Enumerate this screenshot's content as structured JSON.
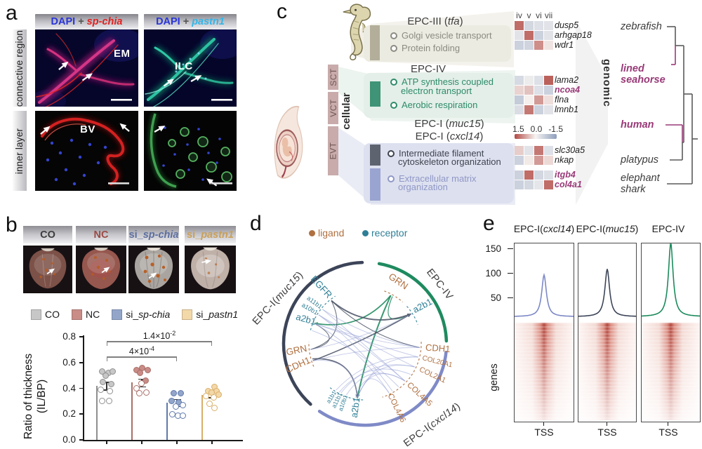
{
  "figure_labels": {
    "a": "a",
    "b": "b",
    "c": "c",
    "d": "d",
    "e": "e"
  },
  "panel_a": {
    "columns": [
      {
        "stain": "DAPI",
        "plus": "+",
        "gene": "sp-chia"
      },
      {
        "stain": "DAPI",
        "plus": "+",
        "gene": "pastn1"
      }
    ],
    "row_labels": [
      "connective region",
      "inner layer"
    ],
    "overlays": {
      "em": "EM",
      "ilc": "ILC",
      "bv": "BV"
    }
  },
  "panel_b": {
    "photo_headers": [
      {
        "prefix": "CO",
        "gene": "",
        "color": "#3d3d3d"
      },
      {
        "prefix": "NC",
        "gene": "",
        "color": "#9c4a44"
      },
      {
        "prefix": "si_",
        "gene": "sp-chia",
        "color": "#5d6f9f"
      },
      {
        "prefix": "si_",
        "gene": "pastn1",
        "color": "#c9a05a"
      }
    ],
    "legend": [
      {
        "prefix": "CO",
        "gene": "",
        "swatch": "#c7c7c7"
      },
      {
        "prefix": "NC",
        "gene": "",
        "swatch": "#c98c87"
      },
      {
        "prefix": "si_",
        "gene": "sp-chia",
        "swatch": "#93a6ca"
      },
      {
        "prefix": "si_",
        "gene": "pastn1",
        "swatch": "#f3d8a9"
      }
    ]
  },
  "panel_c": {
    "cell_axis": "cellular",
    "genome_axis": "genomic",
    "tropho": [
      "SCT",
      "VCT",
      "EVT"
    ],
    "hm_cols": [
      "iv",
      "v",
      "vi",
      "vii"
    ],
    "scale_labels": [
      "1.5",
      "0.0",
      "-1.5"
    ],
    "sections": [
      {
        "h_pre": "EPC-III (",
        "h_gene": "tfa",
        "h_post": ")",
        "block_color": "#b2ae99",
        "band_color": "#ecebe1",
        "terms": [
          {
            "l1": "Golgi vesicle transport",
            "l2": "",
            "color": "#8b8b82"
          },
          {
            "l1": "Protein folding",
            "l2": "",
            "color": "#8b8b82"
          }
        ]
      },
      {
        "h_pre": "EPC-IV",
        "h_gene": "",
        "h_post": "",
        "block_color": "#3f9377",
        "band_color": "#e3efe8",
        "terms": [
          {
            "l1": "ATP synthesis coupled",
            "l2": "electron transport",
            "color": "#2e8b6a"
          },
          {
            "l1": "Aerobic respiration",
            "l2": "",
            "color": "#2e8b6a"
          }
        ]
      },
      {
        "h_pre": "EPC-I (",
        "h_gene": "muc15",
        "h_post": ")",
        "h2_pre": "EPC-I (",
        "h2_gene": "cxcl14",
        "h2_post": ")",
        "block_color": "#5e6370",
        "block2_color": "#9aa4d1",
        "band_color": "#dde0ef",
        "terms": [
          {
            "l1": "Intermediate filament",
            "l2": "cytoskeleton organization",
            "color": "#3f4450"
          },
          {
            "l1": "Extracellular matrix",
            "l2": "organization",
            "color": "#8f98c6"
          }
        ]
      }
    ],
    "tree": {
      "highlight_color": "#993a78",
      "taxa": [
        {
          "line1": "zebrafish",
          "line2": "",
          "hl": false
        },
        {
          "line1": "lined",
          "line2": "seahorse",
          "hl": true
        },
        {
          "line1": "human",
          "line2": "",
          "hl": true
        },
        {
          "line1": "platypus",
          "line2": "",
          "hl": false
        },
        {
          "line1": "elephant",
          "line2": "shark",
          "hl": false
        }
      ]
    }
  },
  "panel_d": {
    "legend": [
      {
        "label": "ligand",
        "color": "#b07040"
      },
      {
        "label": "receptor",
        "color": "#2e7f96"
      }
    ],
    "node_colors": {
      "l": "#b07040",
      "r": "#2e7f96"
    },
    "chord_colors": {
      "gray": "#4e5668",
      "green": "#1f8a5f",
      "peri": "#9aa3d6"
    },
    "arcs": [
      {
        "pre": "EPC-I(",
        "gene": "muc15",
        "post": ")",
        "color": "#3c4458",
        "a0": 222,
        "a1": 358,
        "lx": -121,
        "ly": -62,
        "rot": -47
      },
      {
        "pre": "EPC-IV",
        "gene": "",
        "post": "",
        "color": "#1f8a5f",
        "a0": 10,
        "a1": 88,
        "lx": 103,
        "ly": -82,
        "rot": 52
      },
      {
        "pre": "EPC-I(",
        "gene": "cxcl14",
        "post": ")",
        "color": "#7f8ac7",
        "a0": 96,
        "a1": 214,
        "lx": 98,
        "ly": 119,
        "rot": -36
      }
    ],
    "nodes": [
      {
        "label": "EGFR",
        "ang": 322,
        "r": 102,
        "rot": 48,
        "c": "r",
        "fs": 13.5
      },
      {
        "label": "a11b1",
        "ang": 309,
        "r": 93,
        "rot": 36,
        "c": "r",
        "fs": 9
      },
      {
        "label": "a10b1",
        "ang": 302,
        "r": 93,
        "rot": 30,
        "c": "r",
        "fs": 9
      },
      {
        "label": "a2b1",
        "ang": 292,
        "r": 91,
        "rot": 16,
        "c": "r",
        "fs": 13
      },
      {
        "label": "GRN",
        "ang": 264,
        "r": 98,
        "rot": -12,
        "c": "l",
        "fs": 13.5
      },
      {
        "label": "CDH1",
        "ang": 252,
        "r": 100,
        "rot": -24,
        "c": "l",
        "fs": 13.5
      },
      {
        "label": "GRN",
        "ang": 28,
        "r": 100,
        "rot": 34,
        "c": "l",
        "fs": 13.5
      },
      {
        "label": "a2b1",
        "ang": 57,
        "r": 98,
        "rot": -28,
        "c": "r",
        "fs": 13
      },
      {
        "label": "CDH1",
        "ang": 94,
        "r": 104,
        "rot": 4,
        "c": "l",
        "fs": 13
      },
      {
        "label": "COL20A1",
        "ang": 104,
        "r": 106,
        "rot": 14,
        "c": "l",
        "fs": 10
      },
      {
        "label": "COL2A1",
        "ang": 115,
        "r": 106,
        "rot": 25,
        "c": "l",
        "fs": 10.5
      },
      {
        "label": "COL4A5",
        "ang": 133,
        "r": 106,
        "rot": 43,
        "c": "l",
        "fs": 11.5
      },
      {
        "label": "COL4A6",
        "ang": 154,
        "r": 102,
        "rot": 64,
        "c": "l",
        "fs": 11.5
      },
      {
        "label": "a2b1",
        "ang": 188,
        "r": 92,
        "rot": -82,
        "c": "r",
        "fs": 13
      },
      {
        "label": "a10b1",
        "ang": 200,
        "r": 90,
        "rot": -70,
        "c": "r",
        "fs": 8.5
      },
      {
        "label": "a11b1",
        "ang": 206,
        "r": 90,
        "rot": -64,
        "c": "r",
        "fs": 8.5
      },
      {
        "label": "a1b1",
        "ang": 212,
        "r": 90,
        "rot": -58,
        "c": "r",
        "fs": 8.5
      }
    ],
    "inner_arcs": [
      {
        "a0": 284,
        "a1": 328,
        "c": "r"
      },
      {
        "a0": 246,
        "a1": 272,
        "c": "l"
      },
      {
        "a0": 182,
        "a1": 220,
        "c": "r"
      },
      {
        "a0": 88,
        "a1": 162,
        "c": "l"
      },
      {
        "a0": 20,
        "a1": 42,
        "c": "l"
      },
      {
        "a0": 48,
        "a1": 70,
        "c": "r"
      }
    ],
    "chords": [
      {
        "a": 28,
        "b": 188,
        "c": "green",
        "w": 2,
        "ar": true
      },
      {
        "a": 28,
        "b": 292,
        "c": "green",
        "w": 1.8,
        "ar": true
      },
      {
        "a": 30,
        "b": 57,
        "c": "green",
        "w": 1.2,
        "ar": false
      },
      {
        "a": 322,
        "b": 57,
        "c": "gray",
        "w": 1.8,
        "ar": true
      },
      {
        "a": 252,
        "b": 57,
        "c": "gray",
        "w": 1.6,
        "ar": true
      },
      {
        "a": 254,
        "b": 188,
        "c": "gray",
        "w": 1.6,
        "ar": true
      },
      {
        "a": 94,
        "b": 322,
        "c": "gray",
        "w": 1.1,
        "ar": false
      },
      {
        "a": 264,
        "b": 322,
        "c": "gray",
        "w": 1,
        "ar": false
      },
      {
        "a": 264,
        "b": 292,
        "c": "gray",
        "w": 1,
        "ar": false
      },
      {
        "a": 104,
        "b": 188,
        "c": "peri",
        "w": 0.9,
        "ar": false
      },
      {
        "a": 115,
        "b": 188,
        "c": "peri",
        "w": 0.9,
        "ar": false
      },
      {
        "a": 133,
        "b": 188,
        "c": "peri",
        "w": 0.9,
        "ar": false
      },
      {
        "a": 154,
        "b": 190,
        "c": "peri",
        "w": 0.9,
        "ar": false
      },
      {
        "a": 104,
        "b": 292,
        "c": "peri",
        "w": 0.9,
        "ar": false
      },
      {
        "a": 115,
        "b": 302,
        "c": "peri",
        "w": 0.9,
        "ar": false
      },
      {
        "a": 133,
        "b": 309,
        "c": "peri",
        "w": 0.9,
        "ar": false
      },
      {
        "a": 154,
        "b": 292,
        "c": "peri",
        "w": 0.9,
        "ar": false
      },
      {
        "a": 94,
        "b": 252,
        "c": "peri",
        "w": 0.9,
        "ar": false
      },
      {
        "a": 104,
        "b": 212,
        "c": "peri",
        "w": 0.9,
        "ar": false
      },
      {
        "a": 115,
        "b": 206,
        "c": "peri",
        "w": 0.9,
        "ar": false
      },
      {
        "a": 133,
        "b": 200,
        "c": "peri",
        "w": 0.9,
        "ar": false
      },
      {
        "a": 94,
        "b": 292,
        "c": "peri",
        "w": 0.9,
        "ar": false
      },
      {
        "a": 150,
        "b": 302,
        "c": "peri",
        "w": 0.9,
        "ar": false
      },
      {
        "a": 264,
        "b": 57,
        "c": "peri",
        "w": 0.9,
        "ar": false
      },
      {
        "a": 252,
        "b": 188,
        "c": "peri",
        "w": 0.9,
        "ar": false
      },
      {
        "a": 309,
        "b": 94,
        "c": "peri",
        "w": 0.9,
        "ar": false
      },
      {
        "a": 302,
        "b": 133,
        "c": "peri",
        "w": 0.9,
        "ar": false
      },
      {
        "a": 124,
        "b": 208,
        "c": "peri",
        "w": 0.9,
        "ar": false
      },
      {
        "a": 142,
        "b": 284,
        "c": "peri",
        "w": 0.9,
        "ar": false
      }
    ]
  },
  "panel_e": {
    "cols": [
      {
        "pre": "EPC-I(",
        "gene": "cxcl14",
        "post": ")"
      },
      {
        "pre": "EPC-I(",
        "gene": "muc15",
        "post": ")"
      },
      {
        "pre": "EPC-IV",
        "gene": "",
        "post": ""
      }
    ],
    "yticks": [
      "150",
      "100",
      "50"
    ],
    "ylabel": "genes",
    "xlabel": "TSS"
  },
  "chart_data": [
    {
      "id": "thickness_bar",
      "type": "bar",
      "ylabel": [
        "Ratio of thickness",
        "(IL/BP)"
      ],
      "ylim": [
        0,
        0.8
      ],
      "yticks": [
        0,
        0.2,
        0.4,
        0.6,
        0.8
      ],
      "categories": [
        "CO",
        "NC",
        "si_sp-chia",
        "si_pastn1"
      ],
      "values": [
        0.42,
        0.445,
        0.29,
        0.35
      ],
      "errors": [
        0.03,
        0.03,
        0.028,
        0.02
      ],
      "colors": [
        "#c7c7c7",
        "#c98c87",
        "#93a6ca",
        "#f3d8a9"
      ],
      "edge": [
        "#8f8f8f",
        "#a96f68",
        "#5f79ab",
        "#d9af6a"
      ],
      "dots": [
        [
          [
            0.53,
            -7
          ],
          [
            0.52,
            2
          ],
          [
            0.5,
            -2
          ],
          [
            0.53,
            8
          ],
          [
            0.45,
            -6
          ],
          [
            0.43,
            6
          ],
          [
            0.39,
            -9
          ],
          [
            0.38,
            4
          ],
          [
            0.3,
            -7
          ],
          [
            0.3,
            3
          ]
        ],
        [
          [
            0.54,
            -8
          ],
          [
            0.56,
            0
          ],
          [
            0.54,
            8
          ],
          [
            0.52,
            -3
          ],
          [
            0.46,
            5
          ],
          [
            0.44,
            -1
          ],
          [
            0.4,
            -8
          ],
          [
            0.37,
            6
          ],
          [
            0.36,
            -4
          ]
        ],
        [
          [
            0.36,
            -5
          ],
          [
            0.36,
            5
          ],
          [
            0.3,
            -8
          ],
          [
            0.29,
            2
          ],
          [
            0.27,
            8
          ],
          [
            0.26,
            -2
          ],
          [
            0.2,
            -7
          ],
          [
            0.19,
            1
          ],
          [
            0.19,
            8
          ]
        ],
        [
          [
            0.41,
            3
          ],
          [
            0.38,
            -6
          ],
          [
            0.38,
            6
          ],
          [
            0.37,
            -1
          ],
          [
            0.35,
            9
          ],
          [
            0.34,
            -9
          ],
          [
            0.33,
            2
          ],
          [
            0.28,
            -4
          ],
          [
            0.25,
            3
          ]
        ]
      ],
      "significance": [
        {
          "from": 0,
          "to": 2,
          "base": "4×10",
          "exp": "-4",
          "y": 0.645
        },
        {
          "from": 0,
          "to": 3,
          "base": "1.4×10",
          "exp": "-2",
          "y": 0.765
        }
      ]
    },
    {
      "id": "tss_profiles",
      "type": "line+heatmap",
      "yticks": [
        150,
        100,
        50
      ],
      "baseline": 8,
      "xlabel": "TSS",
      "ylabel": "genes",
      "series": [
        {
          "name": "EPC-I(cxcl14)",
          "peak": 85,
          "color": "#7c88c6"
        },
        {
          "name": "EPC-I(muc15)",
          "peak": 97,
          "color": "#3c4458"
        },
        {
          "name": "EPC-IV",
          "peak": 150,
          "color": "#1c8a5c"
        }
      ]
    },
    {
      "id": "expression_heatmaps",
      "type": "heatmap",
      "columns": [
        "iv",
        "v",
        "vi",
        "vii"
      ],
      "vmin": -1.5,
      "vmax": 1.5,
      "groups": [
        {
          "section": "EPC-III (tfa)",
          "genes": [
            "dusp5",
            "arhgap18",
            "wdr1"
          ],
          "highlight": [
            false,
            false,
            false
          ],
          "matrix": [
            [
              1.2,
              -0.5,
              -0.35,
              -0.3
            ],
            [
              -0.3,
              1.2,
              -0.6,
              -0.3
            ],
            [
              -0.6,
              -0.55,
              0.9,
              0.15
            ]
          ]
        },
        {
          "section": "EPC-IV",
          "genes": [
            "lama2",
            "ncoa4",
            "flna",
            "lmnb1"
          ],
          "highlight": [
            false,
            true,
            false,
            false
          ],
          "matrix": [
            [
              -0.45,
              -0.15,
              -0.35,
              1.3
            ],
            [
              0.3,
              0.45,
              -0.35,
              -0.6
            ],
            [
              -0.7,
              0.05,
              0.8,
              0.2
            ],
            [
              -0.4,
              1.1,
              -0.6,
              -0.3
            ]
          ]
        },
        {
          "section": "EPC-I (muc15)",
          "genes": [
            "slc30a5",
            "nkap"
          ],
          "highlight": [
            false,
            false
          ],
          "matrix": [
            [
              0.35,
              -0.3,
              1.1,
              -0.35
            ],
            [
              -0.6,
              0.1,
              0.8,
              0.25
            ]
          ]
        },
        {
          "section": "EPC-I (cxcl14)",
          "genes": [
            "itgb4",
            "col4a1"
          ],
          "highlight": [
            true,
            true
          ],
          "matrix": [
            [
              -0.6,
              1.2,
              -0.5,
              -0.35
            ],
            [
              -0.6,
              -0.5,
              -0.25,
              1.2
            ]
          ]
        }
      ]
    }
  ]
}
